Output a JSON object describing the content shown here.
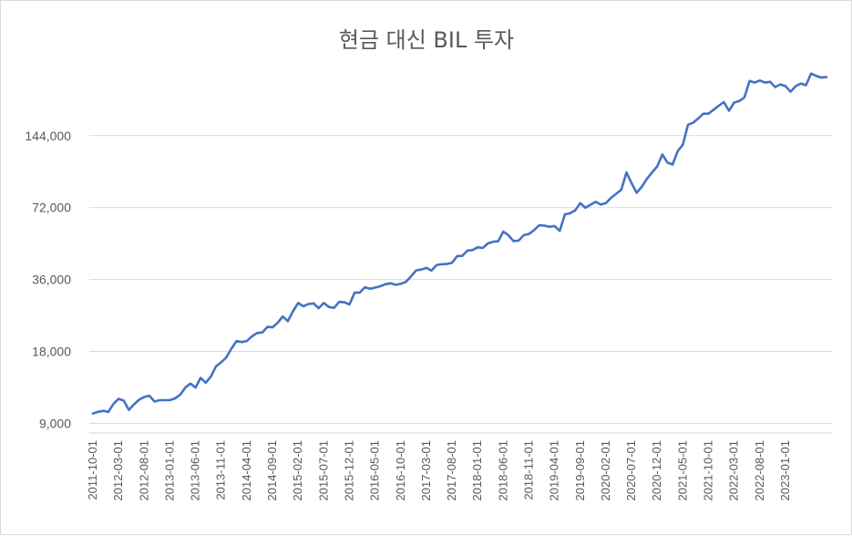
{
  "chart_data": {
    "type": "line",
    "title": "현금 대신 BIL 투자",
    "xlabel": "",
    "ylabel": "",
    "y_scale": "log",
    "ylim": [
      8200,
      250000
    ],
    "grid": true,
    "legend": "none",
    "y_ticks": [
      9000,
      18000,
      36000,
      72000,
      144000
    ],
    "y_tick_labels": [
      "9,000",
      "18,000",
      "36,000",
      "72,000",
      "144,000"
    ],
    "x_tick_labels": [
      "2011-10-01",
      "2012-03-01",
      "2012-08-01",
      "2013-01-01",
      "2013-06-01",
      "2013-11-01",
      "2014-04-01",
      "2014-09-01",
      "2015-02-01",
      "2015-07-01",
      "2015-12-01",
      "2016-05-01",
      "2016-10-01",
      "2017-03-01",
      "2017-08-01",
      "2018-01-01",
      "2018-06-01",
      "2018-11-01",
      "2019-04-01",
      "2019-09-01",
      "2020-02-01",
      "2020-07-01",
      "2020-12-01",
      "2021-05-01",
      "2021-10-01",
      "2022-03-01",
      "2022-08-01",
      "2023-01-01"
    ],
    "series": [
      {
        "color": "#4472c4",
        "start": "2011-10-01",
        "frequency": "monthly",
        "values": [
          9900,
          10050,
          10150,
          10050,
          10850,
          11400,
          11200,
          10250,
          10800,
          11300,
          11600,
          11750,
          11100,
          11250,
          11250,
          11250,
          11450,
          11850,
          12700,
          13200,
          12700,
          13950,
          13300,
          14150,
          15600,
          16200,
          17000,
          18500,
          19900,
          19700,
          19900,
          20800,
          21500,
          21600,
          22800,
          22700,
          23700,
          25200,
          24100,
          26500,
          28700,
          27800,
          28400,
          28600,
          27300,
          28700,
          27600,
          27400,
          29000,
          28900,
          28300,
          31700,
          31700,
          33400,
          32900,
          33300,
          33700,
          34400,
          34700,
          34200,
          34500,
          35200,
          37100,
          39300,
          39600,
          40300,
          39200,
          41400,
          41700,
          41800,
          42300,
          45100,
          45200,
          47500,
          47800,
          49100,
          48800,
          51000,
          51800,
          52000,
          57100,
          55100,
          52100,
          52400,
          55200,
          55800,
          57900,
          60700,
          60500,
          59800,
          60300,
          57500,
          67400,
          68100,
          70100,
          75100,
          71900,
          74000,
          76100,
          74100,
          75100,
          79100,
          82200,
          85500,
          101000,
          91000,
          83000,
          88000,
          95000,
          101000,
          107000,
          120000,
          111000,
          109000,
          124000,
          132000,
          160000,
          163000,
          170000,
          178000,
          178000,
          185000,
          192000,
          199000,
          183000,
          198000,
          201000,
          208000,
          244000,
          240000,
          245000,
          240000,
          242000,
          230000,
          236000,
          232000,
          220000,
          232000,
          238000,
          234000,
          262000,
          256000,
          252000,
          253000
        ]
      }
    ]
  }
}
